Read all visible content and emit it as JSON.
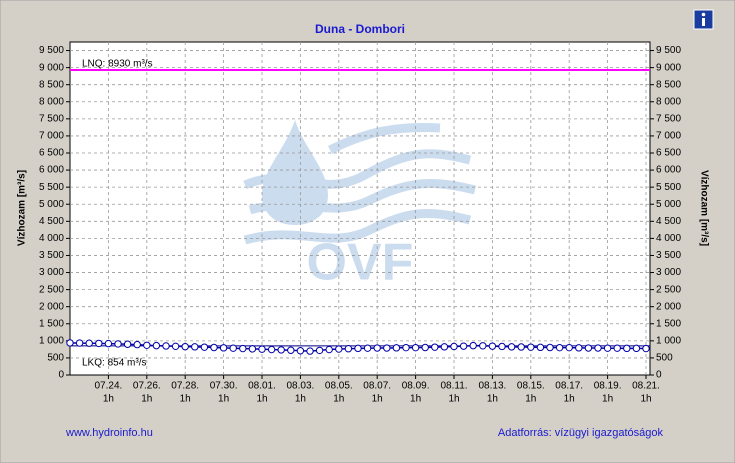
{
  "chart_data": {
    "type": "line",
    "title": "Duna - Dombori",
    "y_label": "Vízhozam [m³/s]",
    "y2_label": "Vízhozam [m³/s]",
    "x": [
      "07.22. 1h",
      "07.22. 13h",
      "07.23. 1h",
      "07.23. 13h",
      "07.24. 1h",
      "07.24. 13h",
      "07.25. 1h",
      "07.25. 13h",
      "07.26. 1h",
      "07.26. 13h",
      "07.27. 1h",
      "07.27. 13h",
      "07.28. 1h",
      "07.28. 13h",
      "07.29. 1h",
      "07.29. 13h",
      "07.30. 1h",
      "07.30. 13h",
      "07.31. 1h",
      "07.31. 13h",
      "08.01. 1h",
      "08.01. 13h",
      "08.02. 1h",
      "08.02. 13h",
      "08.03. 1h",
      "08.03. 13h",
      "08.04. 1h",
      "08.04. 13h",
      "08.05. 1h",
      "08.05. 13h",
      "08.06. 1h",
      "08.06. 13h",
      "08.07. 1h",
      "08.07. 13h",
      "08.08. 1h",
      "08.08. 13h",
      "08.09. 1h",
      "08.09. 13h",
      "08.10. 1h",
      "08.10. 13h",
      "08.11. 1h",
      "08.11. 13h",
      "08.12. 1h",
      "08.12. 13h",
      "08.13. 1h",
      "08.13. 13h",
      "08.14. 1h",
      "08.14. 13h",
      "08.15. 1h",
      "08.15. 13h",
      "08.16. 1h",
      "08.16. 13h",
      "08.17. 1h",
      "08.17. 13h",
      "08.18. 1h",
      "08.18. 13h",
      "08.19. 1h",
      "08.19. 13h",
      "08.20. 1h",
      "08.20. 13h",
      "08.21. 1h"
    ],
    "series": [
      {
        "color": "#0000aa",
        "values": [
          940,
          935,
          930,
          925,
          920,
          910,
          900,
          890,
          870,
          860,
          850,
          840,
          830,
          825,
          815,
          805,
          795,
          785,
          775,
          765,
          755,
          745,
          735,
          725,
          710,
          700,
          720,
          745,
          760,
          770,
          780,
          785,
          790,
          790,
          795,
          800,
          800,
          805,
          815,
          825,
          835,
          845,
          860,
          855,
          845,
          835,
          825,
          820,
          815,
          810,
          805,
          800,
          800,
          795,
          790,
          790,
          785,
          785,
          780,
          780,
          775
        ]
      }
    ],
    "ylim": [
      0,
      9750
    ],
    "yticks": [
      0,
      500,
      {
        "value": 1000,
        "label": "1 000"
      },
      {
        "value": 1500,
        "label": "1 500"
      },
      {
        "value": 2000,
        "label": "2 000"
      },
      {
        "value": 2500,
        "label": "2 500"
      },
      {
        "value": 3000,
        "label": "3 000"
      },
      {
        "value": 3500,
        "label": "3 500"
      },
      {
        "value": 4000,
        "label": "4 000"
      },
      {
        "value": 4500,
        "label": "4 500"
      },
      {
        "value": 5000,
        "label": "5 000"
      },
      {
        "value": 5500,
        "label": "5 500"
      },
      {
        "value": 6000,
        "label": "6 000"
      },
      {
        "value": 6500,
        "label": "6 500"
      },
      {
        "value": 7000,
        "label": "7 000"
      },
      {
        "value": 7500,
        "label": "7 500"
      },
      {
        "value": 8000,
        "label": "8 000"
      },
      {
        "value": 8500,
        "label": "8 500"
      },
      {
        "value": 9000,
        "label": "9 000"
      },
      {
        "value": 9500,
        "label": "9 500"
      }
    ],
    "y2lim": [
      0,
      9750
    ],
    "y2ticks": [
      0,
      500,
      {
        "value": 1000,
        "label": "1 000"
      },
      {
        "value": 1500,
        "label": "1 500"
      },
      {
        "value": 2000,
        "label": "2 000"
      },
      {
        "value": 2500,
        "label": "2 500"
      },
      {
        "value": 3000,
        "label": "3 000"
      },
      {
        "value": 3500,
        "label": "3 500"
      },
      {
        "value": 4000,
        "label": "4 000"
      },
      {
        "value": 4500,
        "label": "4 500"
      },
      {
        "value": 5000,
        "label": "5 000"
      },
      {
        "value": 5500,
        "label": "5 500"
      },
      {
        "value": 6000,
        "label": "6 000"
      },
      {
        "value": 6500,
        "label": "6 500"
      },
      {
        "value": 7000,
        "label": "7 000"
      },
      {
        "value": 7500,
        "label": "7 500"
      },
      {
        "value": 8000,
        "label": "8 000"
      },
      {
        "value": 8500,
        "label": "8 500"
      },
      {
        "value": 9000,
        "label": "9 000"
      },
      {
        "value": 9500,
        "label": "9 500"
      }
    ],
    "xticks": [
      {
        "date": "07.24.",
        "hour": "1h"
      },
      {
        "date": "07.26.",
        "hour": "1h"
      },
      {
        "date": "07.28.",
        "hour": "1h"
      },
      {
        "date": "07.30.",
        "hour": "1h"
      },
      {
        "date": "08.01.",
        "hour": "1h"
      },
      {
        "date": "08.03.",
        "hour": "1h"
      },
      {
        "date": "08.05.",
        "hour": "1h"
      },
      {
        "date": "08.07.",
        "hour": "1h"
      },
      {
        "date": "08.09.",
        "hour": "1h"
      },
      {
        "date": "08.11.",
        "hour": "1h"
      },
      {
        "date": "08.13.",
        "hour": "1h"
      },
      {
        "date": "08.15.",
        "hour": "1h"
      },
      {
        "date": "08.17.",
        "hour": "1h"
      },
      {
        "date": "08.19.",
        "hour": "1h"
      },
      {
        "date": "08.21.",
        "hour": "1h"
      }
    ],
    "grid": true,
    "reference_lines": [
      {
        "label": "LNQ: 8930 m³/s",
        "value": 8930,
        "color": "#ff00ff"
      },
      {
        "label": "LKQ: 854 m³/s",
        "value": 854,
        "color": "#000080"
      }
    ],
    "watermark": "OVF"
  },
  "footer": {
    "left": "www.hydroinfo.hu",
    "right": "Adatforrás: vízügyi igazgatóságok"
  }
}
